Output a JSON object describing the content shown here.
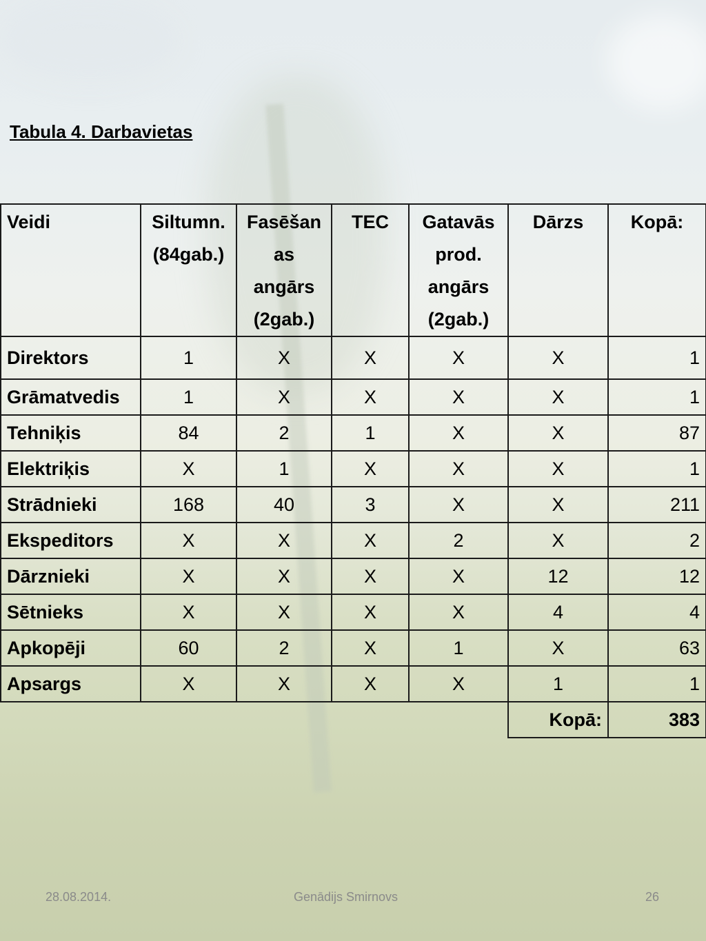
{
  "title": "Tabula 4. Darbavietas",
  "table": {
    "headers": [
      "Veidi",
      "Siltumn. (84gab.)",
      "Fasēšanas angārs (2gab.)",
      "TEC",
      "Gatavās prod. angārs (2gab.)",
      "Dārzs",
      "Kopā:"
    ],
    "header_lines": {
      "h1": [
        "Siltumn.",
        "(84gab.)"
      ],
      "h2": [
        "Fasēšan",
        "as",
        "angārs",
        "(2gab.)"
      ],
      "h4": [
        "Gatavās",
        "prod.",
        "angārs",
        "(2gab.)"
      ]
    },
    "rows": [
      [
        "Direktors",
        "1",
        "X",
        "X",
        "X",
        "X",
        "1"
      ],
      [
        "Grāmatvedis",
        "1",
        "X",
        "X",
        "X",
        "X",
        "1"
      ],
      [
        "Tehniķis",
        "84",
        "2",
        "1",
        "X",
        "X",
        "87"
      ],
      [
        "Elektriķis",
        "X",
        "1",
        "X",
        "X",
        "X",
        "1"
      ],
      [
        "Strādnieki",
        "168",
        "40",
        "3",
        "X",
        "X",
        "211"
      ],
      [
        "Ekspeditors",
        "X",
        "X",
        "X",
        "2",
        "X",
        "2"
      ],
      [
        "Dārznieki",
        "X",
        "X",
        "X",
        "X",
        "12",
        "12"
      ],
      [
        "Sētnieks",
        "X",
        "X",
        "X",
        "X",
        "4",
        "4"
      ],
      [
        "Apkopēji",
        "60",
        "2",
        "X",
        "1",
        "X",
        "63"
      ],
      [
        "Apsargs",
        "X",
        "X",
        "X",
        "X",
        "1",
        "1"
      ]
    ],
    "total_label": "Kopā:",
    "total_value": "383"
  },
  "footer": {
    "date": "28.08.2014.",
    "author": "Genādijs Smirnovs",
    "page": "26"
  }
}
